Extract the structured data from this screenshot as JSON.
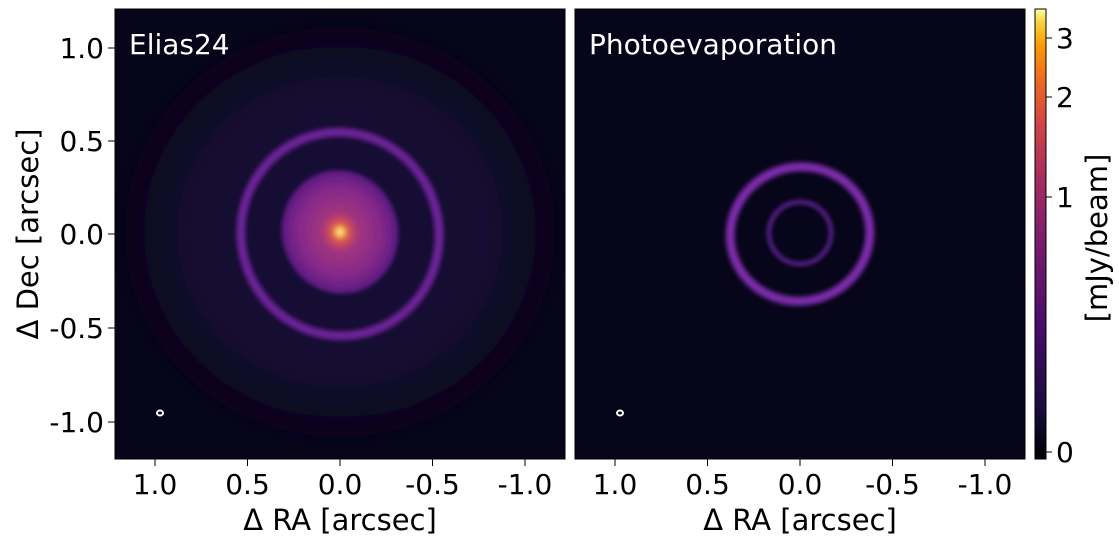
{
  "panels": [
    {
      "title": "Elias24"
    },
    {
      "title": "Photoevaporation"
    }
  ],
  "axes": {
    "xlabel": "Δ RA [arcsec]",
    "ylabel": "Δ Dec [arcsec]",
    "x_ticks": [
      "1.0",
      "0.5",
      "0.0",
      "-0.5",
      "-1.0"
    ],
    "y_ticks": [
      "1.0",
      "0.5",
      "0.0",
      "-0.5",
      "-1.0"
    ]
  },
  "colorbar": {
    "label": "[mJy/beam]",
    "ticks": [
      "3",
      "2",
      "1",
      "0"
    ],
    "colormap": "inferno"
  },
  "colors": {
    "background": "#07051a",
    "ring": "#6c2196",
    "core_outer": "#8e2d8c",
    "core_mid": "#c7436b",
    "core_peak": "#fff4a0"
  }
}
